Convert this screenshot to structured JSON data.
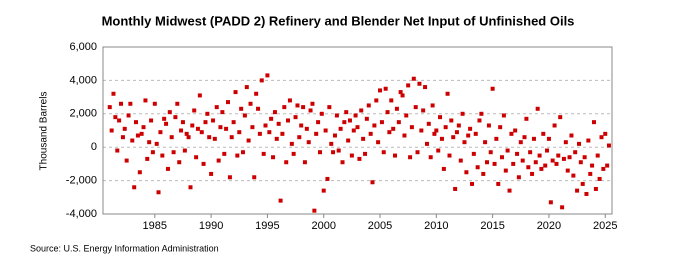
{
  "chart_data": {
    "type": "scatter",
    "title": "Monthly Midwest (PADD 2) Refinery and Blender Net Input of Unfinished Oils",
    "y_label": "Thousand Barrels",
    "source": "Source: U.S. Energy Information Administration",
    "color": "#cc0000",
    "grid": true,
    "xlim": [
      1980.4,
      2025.6
    ],
    "ylim": [
      -4000,
      6000
    ],
    "xticks": [
      1985,
      1990,
      1995,
      2000,
      2005,
      2010,
      2015,
      2020,
      2025
    ],
    "yticks": [
      {
        "value": -4000,
        "label": "-4,000"
      },
      {
        "value": -2000,
        "label": "-2,000"
      },
      0,
      {
        "value": 2000,
        "label": "2,000"
      },
      {
        "value": 4000,
        "label": "4,000"
      },
      {
        "value": 6000,
        "label": "6,000"
      }
    ],
    "x": [
      1981.0,
      1981.17,
      1981.33,
      1981.5,
      1981.67,
      1981.83,
      1982.0,
      1982.17,
      1982.33,
      1982.5,
      1982.67,
      1982.83,
      1983.0,
      1983.17,
      1983.33,
      1983.5,
      1983.67,
      1983.83,
      1984.0,
      1984.17,
      1984.33,
      1984.5,
      1984.67,
      1984.83,
      1985.0,
      1985.17,
      1985.33,
      1985.5,
      1985.67,
      1985.83,
      1986.0,
      1986.17,
      1986.33,
      1986.5,
      1986.67,
      1986.83,
      1987.0,
      1987.17,
      1987.33,
      1987.5,
      1987.67,
      1987.83,
      1988.0,
      1988.17,
      1988.33,
      1988.5,
      1988.67,
      1988.83,
      1989.0,
      1989.17,
      1989.33,
      1989.5,
      1989.67,
      1989.83,
      1990.0,
      1990.17,
      1990.33,
      1990.5,
      1990.67,
      1990.83,
      1991.0,
      1991.17,
      1991.33,
      1991.5,
      1991.67,
      1991.83,
      1992.0,
      1992.17,
      1992.33,
      1992.5,
      1992.67,
      1992.83,
      1993.0,
      1993.17,
      1993.33,
      1993.5,
      1993.67,
      1993.83,
      1994.0,
      1994.17,
      1994.33,
      1994.5,
      1994.67,
      1994.83,
      1995.0,
      1995.17,
      1995.33,
      1995.5,
      1995.67,
      1995.83,
      1996.0,
      1996.17,
      1996.33,
      1996.5,
      1996.67,
      1996.83,
      1997.0,
      1997.17,
      1997.33,
      1997.5,
      1997.67,
      1997.83,
      1998.0,
      1998.17,
      1998.33,
      1998.5,
      1998.67,
      1998.83,
      1999.0,
      1999.17,
      1999.33,
      1999.5,
      1999.67,
      1999.83,
      2000.0,
      2000.17,
      2000.33,
      2000.5,
      2000.67,
      2000.83,
      2001.0,
      2001.17,
      2001.33,
      2001.5,
      2001.67,
      2001.83,
      2002.0,
      2002.17,
      2002.33,
      2002.5,
      2002.67,
      2002.83,
      2003.0,
      2003.17,
      2003.33,
      2003.5,
      2003.67,
      2003.83,
      2004.0,
      2004.17,
      2004.33,
      2004.5,
      2004.67,
      2004.83,
      2005.0,
      2005.17,
      2005.33,
      2005.5,
      2005.67,
      2005.83,
      2006.0,
      2006.17,
      2006.33,
      2006.5,
      2006.67,
      2006.83,
      2007.0,
      2007.17,
      2007.33,
      2007.5,
      2007.67,
      2007.83,
      2008.0,
      2008.17,
      2008.33,
      2008.5,
      2008.67,
      2008.83,
      2009.0,
      2009.17,
      2009.33,
      2009.5,
      2009.67,
      2009.83,
      2010.0,
      2010.17,
      2010.33,
      2010.5,
      2010.67,
      2010.83,
      2011.0,
      2011.17,
      2011.33,
      2011.5,
      2011.67,
      2011.83,
      2012.0,
      2012.17,
      2012.33,
      2012.5,
      2012.67,
      2012.83,
      2013.0,
      2013.17,
      2013.33,
      2013.5,
      2013.67,
      2013.83,
      2014.0,
      2014.17,
      2014.33,
      2014.5,
      2014.67,
      2014.83,
      2015.0,
      2015.17,
      2015.33,
      2015.5,
      2015.67,
      2015.83,
      2016.0,
      2016.17,
      2016.33,
      2016.5,
      2016.67,
      2016.83,
      2017.0,
      2017.17,
      2017.33,
      2017.5,
      2017.67,
      2017.83,
      2018.0,
      2018.17,
      2018.33,
      2018.5,
      2018.67,
      2018.83,
      2019.0,
      2019.17,
      2019.33,
      2019.5,
      2019.67,
      2019.83,
      2020.0,
      2020.17,
      2020.33,
      2020.5,
      2020.67,
      2020.83,
      2021.0,
      2021.17,
      2021.33,
      2021.5,
      2021.67,
      2021.83,
      2022.0,
      2022.17,
      2022.33,
      2022.5,
      2022.67,
      2022.83,
      2023.0,
      2023.17,
      2023.33,
      2023.5,
      2023.67,
      2023.83,
      2024.0,
      2024.17,
      2024.33,
      2024.5,
      2024.67,
      2024.83,
      2025.0,
      2025.17,
      2025.33
    ],
    "values": [
      2400,
      1000,
      3200,
      1800,
      -200,
      1600,
      2600,
      600,
      1100,
      -800,
      1900,
      2600,
      400,
      -2400,
      1500,
      700,
      -1500,
      800,
      1200,
      2800,
      -700,
      300,
      1600,
      -300,
      2600,
      200,
      -2700,
      900,
      -500,
      1700,
      1400,
      -1300,
      2100,
      600,
      -300,
      1800,
      2600,
      -900,
      1000,
      1500,
      -200,
      800,
      600,
      -2400,
      1300,
      2200,
      -600,
      1100,
      3100,
      900,
      -1000,
      1500,
      2000,
      600,
      -1600,
      1600,
      500,
      2400,
      -800,
      1200,
      2100,
      -400,
      1100,
      2700,
      -1800,
      600,
      1500,
      3300,
      -500,
      900,
      2300,
      -300,
      1900,
      3600,
      400,
      2600,
      1200,
      -1800,
      3200,
      2300,
      800,
      4000,
      -400,
      1300,
      4300,
      900,
      1700,
      -600,
      2100,
      500,
      1400,
      -3200,
      800,
      2400,
      -900,
      1600,
      2800,
      200,
      -400,
      1800,
      2500,
      600,
      1300,
      2400,
      -900,
      1100,
      300,
      2200,
      2600,
      -3800,
      800,
      1500,
      -300,
      2000,
      -2600,
      1000,
      -1900,
      2400,
      200,
      -300,
      700,
      1900,
      -200,
      1100,
      -900,
      1500,
      2100,
      400,
      1600,
      -500,
      1000,
      1900,
      1200,
      -700,
      2200,
      500,
      -400,
      1700,
      2500,
      800,
      -2100,
      1300,
      2800,
      300,
      3400,
      1500,
      -300,
      3500,
      2100,
      900,
      2800,
      1100,
      -500,
      2300,
      1500,
      3300,
      3100,
      700,
      1900,
      3700,
      -600,
      1200,
      4100,
      2400,
      -300,
      3800,
      1000,
      2200,
      3600,
      200,
      1400,
      -600,
      2500,
      800,
      1000,
      -200,
      1800,
      500,
      -1300,
      1200,
      3200,
      -500,
      1600,
      600,
      -2500,
      900,
      1300,
      -800,
      2000,
      300,
      -1500,
      700,
      1100,
      -2200,
      -400,
      800,
      -1200,
      1600,
      2000,
      -1600,
      300,
      -900,
      1300,
      -300,
      3500,
      -1000,
      500,
      -2200,
      1200,
      -600,
      1900,
      -1400,
      -200,
      -2600,
      800,
      -1000,
      1000,
      -400,
      -1800,
      300,
      -800,
      600,
      1700,
      -1200,
      -300,
      -1600,
      500,
      -900,
      2300,
      -500,
      -1300,
      800,
      -1100,
      -200,
      500,
      -3300,
      -800,
      1300,
      -1000,
      -500,
      1800,
      -3600,
      -700,
      300,
      -1400,
      -600,
      700,
      -1700,
      -300,
      -2600,
      200,
      -900,
      -2200,
      -600,
      -2800,
      400,
      -1600,
      -1100,
      1500,
      -2500,
      -500,
      -1900,
      600,
      -1300,
      800,
      -1100,
      100
    ]
  }
}
